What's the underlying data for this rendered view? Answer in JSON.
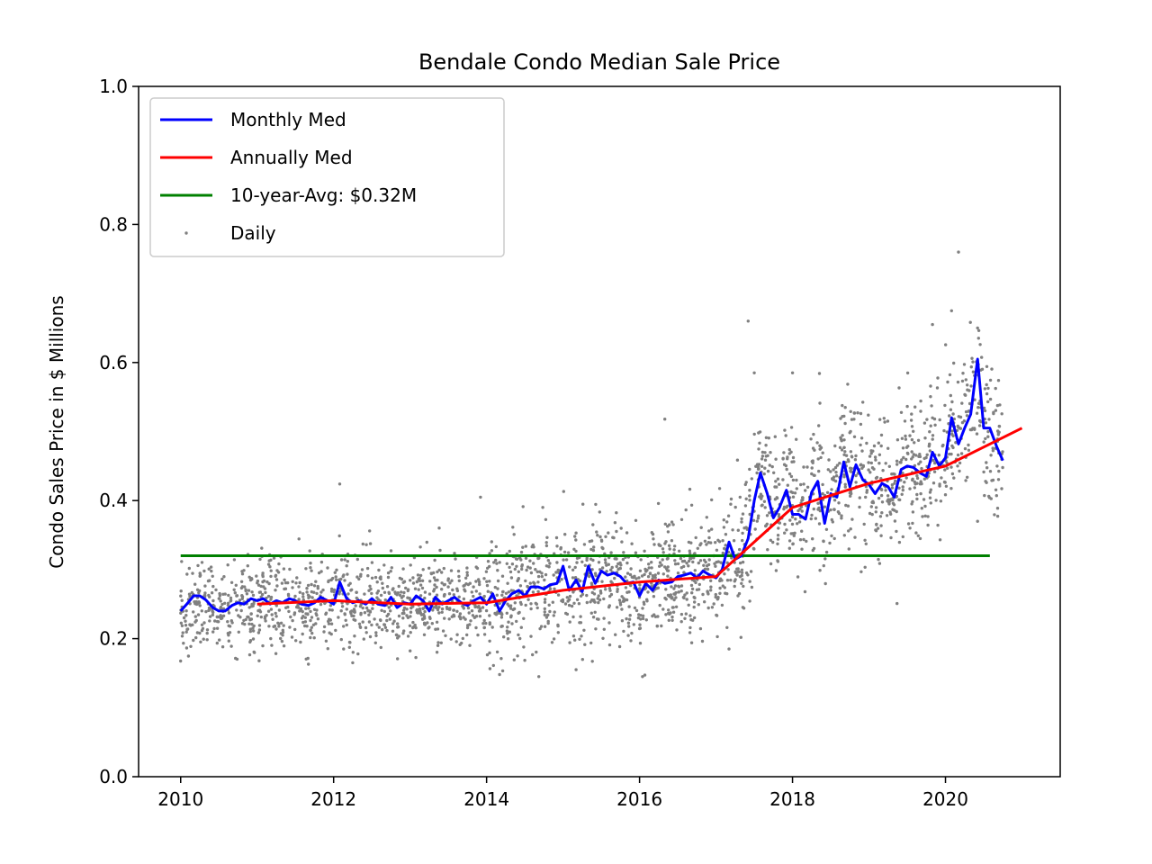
{
  "chart_data": {
    "type": "line",
    "title": "Bendale Condo Median Sale Price",
    "xlabel": "",
    "ylabel": "Condo Sales Price in $ Millions",
    "xlim": [
      2009.45,
      2021.5
    ],
    "ylim": [
      0.0,
      1.0
    ],
    "xticks": [
      2010,
      2012,
      2014,
      2016,
      2018,
      2020
    ],
    "xtick_labels": [
      "2010",
      "2012",
      "2014",
      "2016",
      "2018",
      "2020"
    ],
    "yticks": [
      0.0,
      0.2,
      0.4,
      0.6,
      0.8,
      1.0
    ],
    "ytick_labels": [
      "0.0",
      "0.2",
      "0.4",
      "0.6",
      "0.8",
      "1.0"
    ],
    "grid": false,
    "legend_position": "top-left",
    "series": [
      {
        "name": "Monthly Med",
        "kind": "line",
        "color": "#0000ff",
        "points": [
          [
            2010.0,
            0.24
          ],
          [
            2010.08,
            0.25
          ],
          [
            2010.17,
            0.262
          ],
          [
            2010.25,
            0.262
          ],
          [
            2010.33,
            0.256
          ],
          [
            2010.42,
            0.245
          ],
          [
            2010.5,
            0.24
          ],
          [
            2010.58,
            0.24
          ],
          [
            2010.67,
            0.248
          ],
          [
            2010.75,
            0.252
          ],
          [
            2010.83,
            0.25
          ],
          [
            2010.92,
            0.258
          ],
          [
            2011.0,
            0.255
          ],
          [
            2011.08,
            0.258
          ],
          [
            2011.17,
            0.25
          ],
          [
            2011.25,
            0.255
          ],
          [
            2011.33,
            0.252
          ],
          [
            2011.42,
            0.258
          ],
          [
            2011.5,
            0.255
          ],
          [
            2011.58,
            0.25
          ],
          [
            2011.67,
            0.248
          ],
          [
            2011.75,
            0.252
          ],
          [
            2011.83,
            0.26
          ],
          [
            2011.92,
            0.255
          ],
          [
            2012.0,
            0.25
          ],
          [
            2012.08,
            0.282
          ],
          [
            2012.17,
            0.258
          ],
          [
            2012.25,
            0.252
          ],
          [
            2012.33,
            0.255
          ],
          [
            2012.42,
            0.25
          ],
          [
            2012.5,
            0.258
          ],
          [
            2012.58,
            0.25
          ],
          [
            2012.67,
            0.248
          ],
          [
            2012.75,
            0.26
          ],
          [
            2012.83,
            0.245
          ],
          [
            2012.92,
            0.252
          ],
          [
            2013.0,
            0.25
          ],
          [
            2013.08,
            0.262
          ],
          [
            2013.17,
            0.255
          ],
          [
            2013.25,
            0.24
          ],
          [
            2013.33,
            0.26
          ],
          [
            2013.42,
            0.25
          ],
          [
            2013.5,
            0.255
          ],
          [
            2013.58,
            0.26
          ],
          [
            2013.67,
            0.252
          ],
          [
            2013.75,
            0.248
          ],
          [
            2013.83,
            0.255
          ],
          [
            2013.92,
            0.26
          ],
          [
            2014.0,
            0.25
          ],
          [
            2014.08,
            0.265
          ],
          [
            2014.17,
            0.24
          ],
          [
            2014.25,
            0.255
          ],
          [
            2014.33,
            0.265
          ],
          [
            2014.42,
            0.27
          ],
          [
            2014.5,
            0.262
          ],
          [
            2014.58,
            0.275
          ],
          [
            2014.67,
            0.275
          ],
          [
            2014.75,
            0.272
          ],
          [
            2014.83,
            0.278
          ],
          [
            2014.92,
            0.28
          ],
          [
            2015.0,
            0.305
          ],
          [
            2015.08,
            0.27
          ],
          [
            2015.17,
            0.285
          ],
          [
            2015.25,
            0.268
          ],
          [
            2015.33,
            0.305
          ],
          [
            2015.42,
            0.28
          ],
          [
            2015.5,
            0.298
          ],
          [
            2015.58,
            0.292
          ],
          [
            2015.67,
            0.295
          ],
          [
            2015.75,
            0.29
          ],
          [
            2015.83,
            0.28
          ],
          [
            2015.92,
            0.282
          ],
          [
            2016.0,
            0.262
          ],
          [
            2016.08,
            0.28
          ],
          [
            2016.17,
            0.27
          ],
          [
            2016.25,
            0.285
          ],
          [
            2016.33,
            0.28
          ],
          [
            2016.42,
            0.282
          ],
          [
            2016.5,
            0.29
          ],
          [
            2016.58,
            0.292
          ],
          [
            2016.67,
            0.295
          ],
          [
            2016.75,
            0.288
          ],
          [
            2016.83,
            0.298
          ],
          [
            2016.92,
            0.292
          ],
          [
            2017.0,
            0.288
          ],
          [
            2017.08,
            0.3
          ],
          [
            2017.17,
            0.34
          ],
          [
            2017.25,
            0.315
          ],
          [
            2017.33,
            0.32
          ],
          [
            2017.42,
            0.345
          ],
          [
            2017.5,
            0.4
          ],
          [
            2017.58,
            0.44
          ],
          [
            2017.67,
            0.41
          ],
          [
            2017.75,
            0.375
          ],
          [
            2017.83,
            0.39
          ],
          [
            2017.92,
            0.415
          ],
          [
            2018.0,
            0.38
          ],
          [
            2018.08,
            0.38
          ],
          [
            2018.17,
            0.373
          ],
          [
            2018.25,
            0.412
          ],
          [
            2018.33,
            0.428
          ],
          [
            2018.42,
            0.367
          ],
          [
            2018.5,
            0.41
          ],
          [
            2018.58,
            0.405
          ],
          [
            2018.67,
            0.456
          ],
          [
            2018.75,
            0.42
          ],
          [
            2018.83,
            0.452
          ],
          [
            2018.92,
            0.43
          ],
          [
            2019.0,
            0.423
          ],
          [
            2019.08,
            0.41
          ],
          [
            2019.17,
            0.425
          ],
          [
            2019.25,
            0.42
          ],
          [
            2019.33,
            0.405
          ],
          [
            2019.42,
            0.445
          ],
          [
            2019.5,
            0.45
          ],
          [
            2019.58,
            0.448
          ],
          [
            2019.67,
            0.44
          ],
          [
            2019.75,
            0.435
          ],
          [
            2019.83,
            0.47
          ],
          [
            2019.92,
            0.45
          ],
          [
            2020.0,
            0.462
          ],
          [
            2020.08,
            0.52
          ],
          [
            2020.17,
            0.482
          ],
          [
            2020.25,
            0.505
          ],
          [
            2020.33,
            0.525
          ],
          [
            2020.42,
            0.605
          ],
          [
            2020.5,
            0.505
          ],
          [
            2020.58,
            0.505
          ],
          [
            2020.67,
            0.478
          ],
          [
            2020.75,
            0.458
          ]
        ]
      },
      {
        "name": "Annually Med",
        "kind": "line",
        "color": "#ff0000",
        "points": [
          [
            2011.0,
            0.25
          ],
          [
            2012.0,
            0.255
          ],
          [
            2013.0,
            0.25
          ],
          [
            2014.0,
            0.252
          ],
          [
            2015.0,
            0.27
          ],
          [
            2016.0,
            0.282
          ],
          [
            2017.0,
            0.29
          ],
          [
            2018.0,
            0.39
          ],
          [
            2019.0,
            0.425
          ],
          [
            2020.0,
            0.45
          ],
          [
            2021.0,
            0.505
          ]
        ]
      },
      {
        "name": "10-year-Avg: $0.32M",
        "kind": "line",
        "color": "#008000",
        "points": [
          [
            2010.0,
            0.32
          ],
          [
            2020.58,
            0.32
          ]
        ]
      },
      {
        "name": "Daily",
        "kind": "scatter",
        "color": "#808080",
        "generated": true,
        "count_approx": 2600,
        "follows_series": "Monthly Med",
        "y_range": [
          0.145,
          0.76
        ],
        "outliers": [
          [
            2020.17,
            0.76
          ],
          [
            2017.42,
            0.66
          ],
          [
            2020.08,
            0.675
          ],
          [
            2019.83,
            0.655
          ],
          [
            2017.5,
            0.585
          ],
          [
            2016.33,
            0.518
          ],
          [
            2014.17,
            0.148
          ],
          [
            2015.17,
            0.155
          ],
          [
            2011.67,
            0.163
          ],
          [
            2012.25,
            0.165
          ],
          [
            2013.92,
            0.405
          ],
          [
            2012.08,
            0.424
          ],
          [
            2018.0,
            0.585
          ],
          [
            2017.17,
            0.185
          ],
          [
            2019.67,
            0.345
          ],
          [
            2020.42,
            0.65
          ],
          [
            2020.42,
            0.37
          ]
        ]
      }
    ]
  }
}
